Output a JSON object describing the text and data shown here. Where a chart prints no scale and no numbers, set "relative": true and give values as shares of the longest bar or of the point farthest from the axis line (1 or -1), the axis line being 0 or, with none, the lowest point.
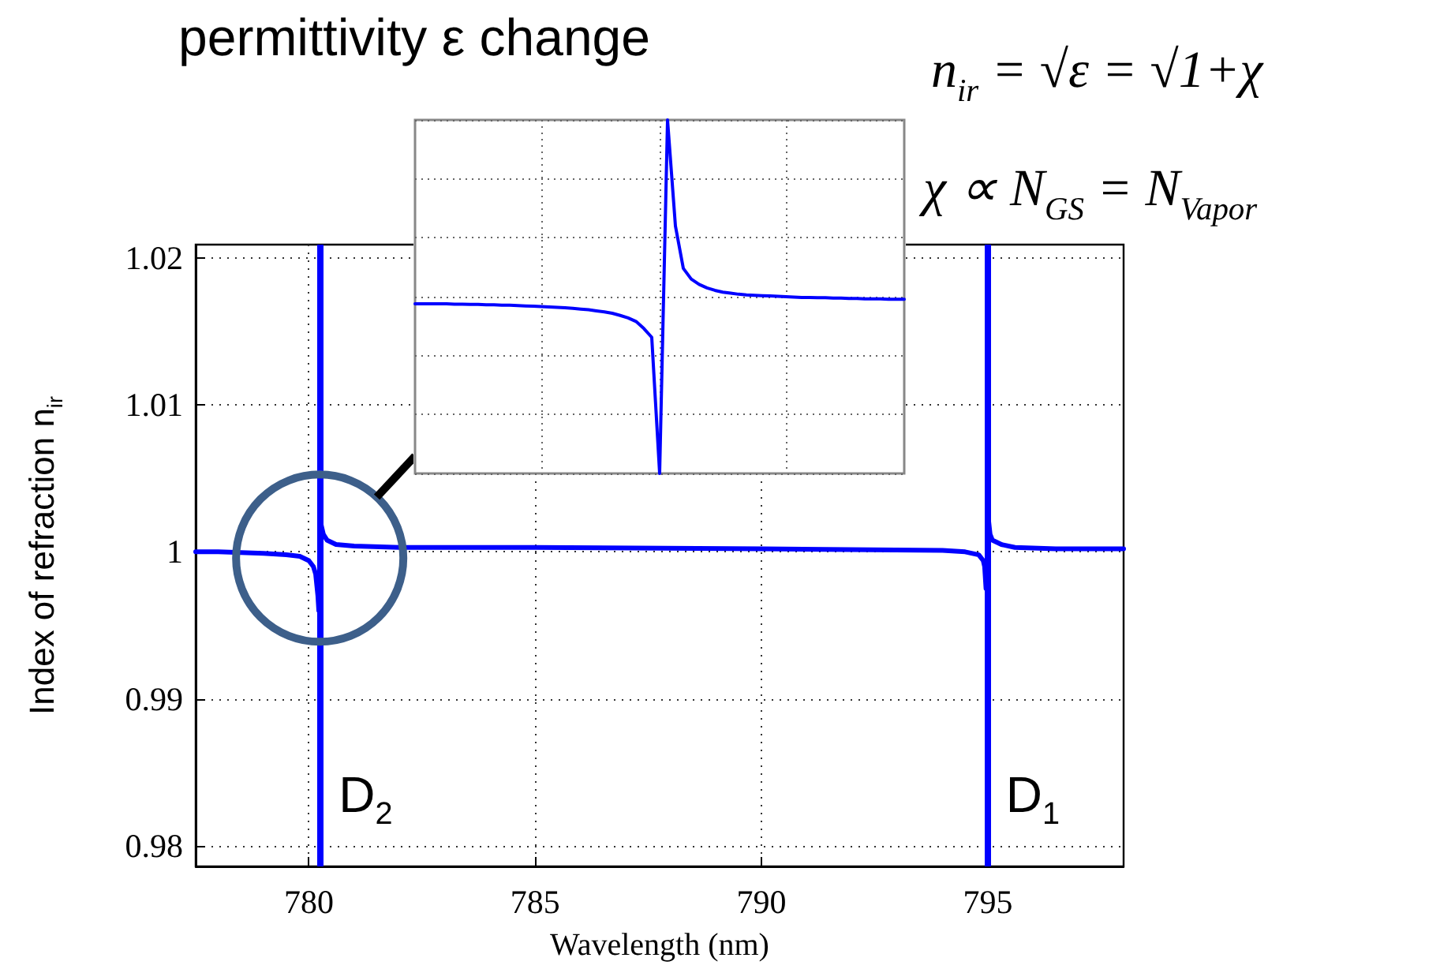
{
  "chart_data": [
    {
      "type": "line",
      "title": "permittivity ε change",
      "xlabel": "Wavelength (nm)",
      "ylabel": "Index of refraction n$_{ir}$",
      "x": [
        777.5,
        778,
        779,
        779.5,
        779.8,
        780.0,
        780.1,
        780.15,
        780.2,
        780.22,
        780.24,
        780.26,
        780.32,
        780.4,
        780.6,
        781,
        782,
        785,
        790,
        794,
        794.5,
        794.8,
        794.9,
        794.93,
        794.96,
        794.98,
        795.0,
        795.05,
        795.1,
        795.3,
        795.6,
        796.5,
        798
      ],
      "series": [
        {
          "color": "#0000ff",
          "values": [
            1.0,
            1.0,
            0.9999,
            0.9998,
            0.9997,
            0.9994,
            0.999,
            0.9985,
            0.997,
            0.996,
            null,
            1.002,
            1.0012,
            1.0008,
            1.0005,
            1.0004,
            1.0003,
            1.0003,
            1.0002,
            1.0001,
            1.0,
            0.9998,
            0.9994,
            0.999,
            0.9975,
            null,
            1.0026,
            1.0012,
            1.0008,
            1.0005,
            1.0003,
            1.0002,
            1.0002
          ]
        }
      ],
      "xlim": [
        777.5,
        798
      ],
      "ylim": [
        0.9786,
        1.0209
      ],
      "xticks": [
        780,
        785,
        790,
        795
      ],
      "yticks": [
        0.98,
        0.99,
        1,
        1.01,
        1.02
      ],
      "grid": true,
      "marker": "none",
      "ref_lines": [
        {
          "axis": "x",
          "value": 780.24,
          "label": "D$_{2}$",
          "color": "#0000ff"
        },
        {
          "axis": "x",
          "value": 794.98,
          "label": "D$_{1}$",
          "color": "#0000ff"
        }
      ],
      "annotations": [
        "n$_{ir}$ = √ε = √1+χ",
        "χ ∝ N$_{GS}$ = N$_{Vapor}$"
      ]
    },
    {
      "type": "line",
      "relative": true,
      "tick_labels": false,
      "grid": true,
      "marker": "none",
      "categories": [
        null,
        null,
        null,
        null,
        null,
        null,
        null,
        null,
        null,
        null,
        null,
        null,
        null,
        null,
        null,
        null,
        null,
        null,
        null,
        null,
        null,
        null,
        null,
        null,
        null,
        null,
        null,
        null,
        null,
        null,
        null,
        null,
        null,
        null,
        null,
        null,
        null,
        null,
        null,
        null,
        null,
        null,
        null,
        null,
        null,
        null,
        null,
        null,
        null,
        null,
        null,
        null,
        null,
        null,
        null,
        null,
        null,
        null,
        null,
        null,
        null,
        null,
        null
      ],
      "series": [
        {
          "color": "#0000ff",
          "values": [
            0.48,
            0.48,
            0.48,
            0.48,
            0.48,
            0.479,
            0.479,
            0.478,
            0.478,
            0.477,
            0.477,
            0.476,
            0.476,
            0.475,
            0.474,
            0.473,
            0.472,
            0.471,
            0.47,
            0.469,
            0.467,
            0.465,
            0.463,
            0.46,
            0.457,
            0.453,
            0.447,
            0.44,
            0.43,
            0.41,
            0.385,
            0,
            1,
            0.7,
            0.58,
            0.55,
            0.535,
            0.525,
            0.518,
            0.513,
            0.51,
            0.507,
            0.505,
            0.504,
            0.503,
            0.502,
            0.501,
            0.5,
            0.499,
            0.498,
            0.498,
            0.497,
            0.497,
            0.496,
            0.496,
            0.495,
            0.495,
            0.494,
            0.494,
            0.494,
            0.493,
            0.493,
            0.493
          ]
        }
      ]
    }
  ]
}
